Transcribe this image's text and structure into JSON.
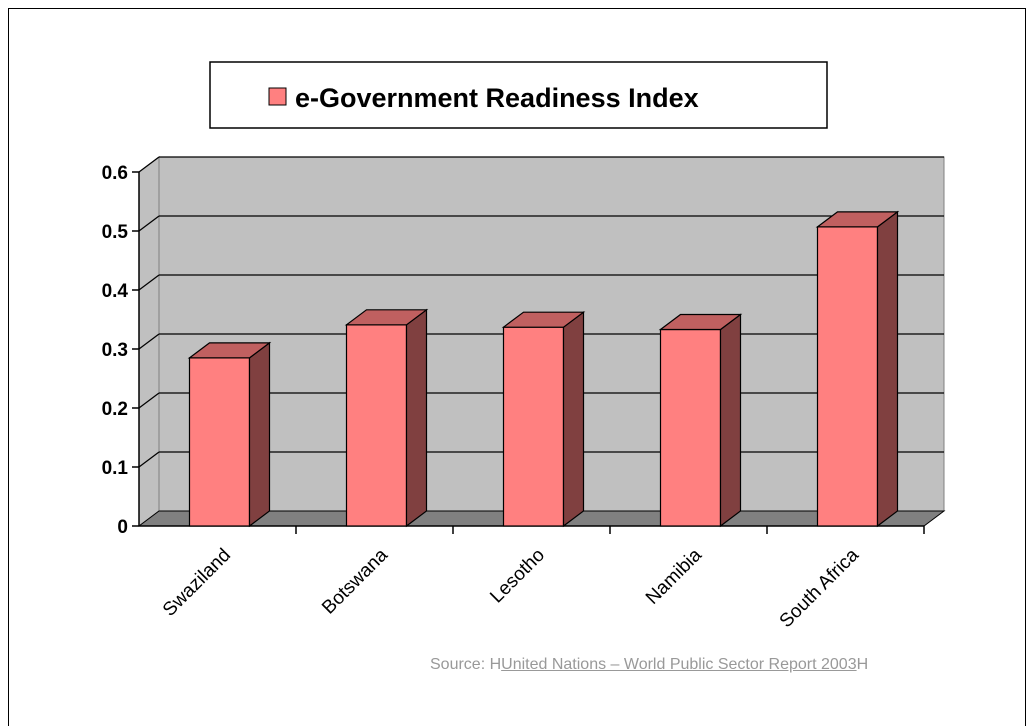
{
  "chart_data": {
    "type": "bar",
    "style": "3d-column",
    "categories": [
      "Swaziland",
      "Botswana",
      "Lesotho",
      "Namibia",
      "South Africa"
    ],
    "series": [
      {
        "name": "e-Government Readiness Index",
        "values": [
          0.285,
          0.341,
          0.337,
          0.333,
          0.507
        ]
      }
    ],
    "ylim": [
      0,
      0.6
    ],
    "yticks": [
      "0",
      "0.1",
      "0.2",
      "0.3",
      "0.4",
      "0.5",
      "0.6"
    ],
    "grid": true,
    "legend_position": "top-center",
    "colors": {
      "bar_front": "#ff8080",
      "bar_side": "#804040",
      "bar_top": "#c06060",
      "wall": "#c0c0c0",
      "floor": "#808080"
    }
  },
  "source": {
    "prefix": "Source: H",
    "link": "United Nations – World Public Sector Report 2003",
    "suffix": "H"
  }
}
